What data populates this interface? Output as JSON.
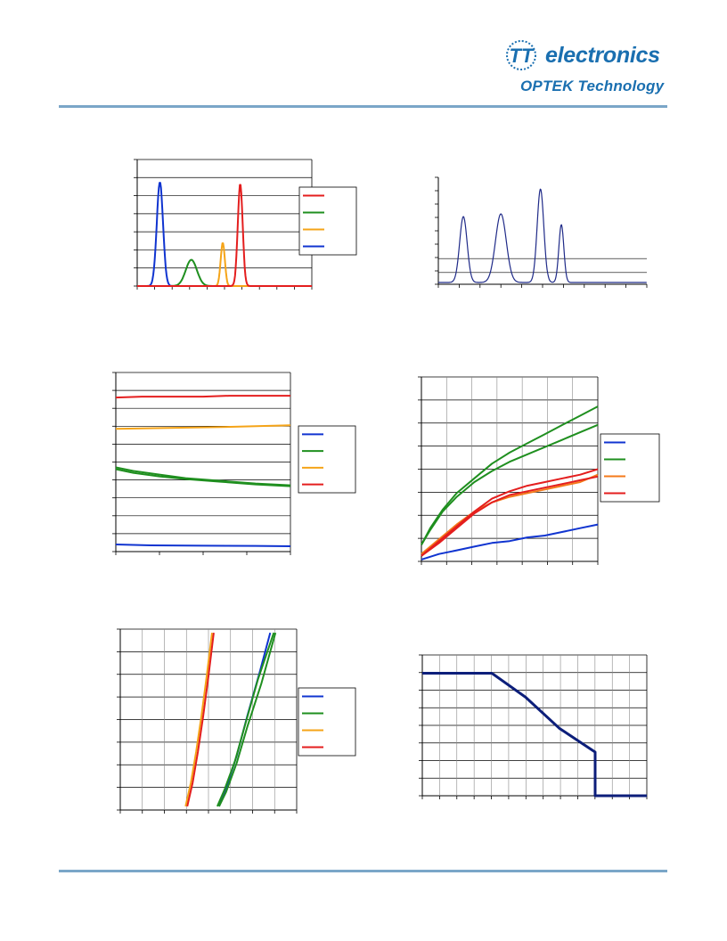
{
  "header": {
    "brand_text": "electronics",
    "sub_text": "OPTEK Technology",
    "logo_monogram": "TT",
    "brand_color": "#1a6fb0",
    "rule_color": "#7aa6c8"
  },
  "palette": {
    "red": "#e41e1e",
    "green": "#1f8f1f",
    "amber": "#f5a418",
    "blue": "#1034d0",
    "navy": "#1f2a88",
    "deep_navy": "#0c1e7a",
    "orange": "#f47a1a"
  },
  "chart_data": [
    {
      "type": "line",
      "grid": "horizontal",
      "legend_placement": "right",
      "legend_colors": [
        "red",
        "green",
        "amber",
        "blue"
      ],
      "ylim": [
        0,
        1.4
      ],
      "xlim": [
        0,
        1
      ],
      "series": [
        {
          "color": "blue",
          "peak_x": 0.13,
          "peak_y": 1.15,
          "width": 0.018
        },
        {
          "color": "green",
          "peak_x": 0.31,
          "peak_y": 0.29,
          "width": 0.032
        },
        {
          "color": "amber",
          "peak_x": 0.49,
          "peak_y": 0.48,
          "width": 0.012
        },
        {
          "color": "red",
          "peak_x": 0.59,
          "peak_y": 1.13,
          "width": 0.014
        }
      ]
    },
    {
      "type": "line",
      "grid": "horizontal",
      "ylim": [
        0,
        1.2
      ],
      "xlim": [
        0,
        1
      ],
      "series": [
        {
          "color": "navy",
          "peaks": [
            {
              "x": 0.12,
              "y": 0.74,
              "w": 0.018
            },
            {
              "x": 0.3,
              "y": 0.77,
              "w": 0.026
            },
            {
              "x": 0.49,
              "y": 1.05,
              "w": 0.016
            },
            {
              "x": 0.59,
              "y": 0.65,
              "w": 0.012
            }
          ]
        }
      ]
    },
    {
      "type": "line",
      "grid": "horizontal",
      "legend_placement": "right",
      "legend_colors": [
        "blue",
        "green",
        "amber",
        "red"
      ],
      "ylim": [
        0,
        1
      ],
      "xlim": [
        0,
        1
      ],
      "series": [
        {
          "color": "red",
          "x": [
            0,
            0.15,
            0.5,
            0.65,
            1
          ],
          "y": [
            0.86,
            0.865,
            0.865,
            0.87,
            0.87
          ]
        },
        {
          "color": "amber",
          "x": [
            0,
            0.3,
            0.6,
            1
          ],
          "y": [
            0.685,
            0.69,
            0.695,
            0.705
          ]
        },
        {
          "color": "green",
          "x": [
            0,
            0.1,
            0.25,
            0.4,
            0.6,
            0.8,
            1
          ],
          "y": [
            0.47,
            0.45,
            0.43,
            0.41,
            0.395,
            0.38,
            0.37
          ]
        },
        {
          "color": "green",
          "x": [
            0,
            0.1,
            0.25,
            0.4,
            0.6,
            0.8,
            1
          ],
          "y": [
            0.46,
            0.44,
            0.42,
            0.405,
            0.39,
            0.375,
            0.365
          ]
        },
        {
          "color": "blue",
          "x": [
            0,
            0.2,
            0.5,
            0.8,
            1
          ],
          "y": [
            0.04,
            0.035,
            0.033,
            0.032,
            0.03
          ]
        }
      ]
    },
    {
      "type": "line",
      "grid": "both",
      "legend_placement": "right",
      "legend_colors": [
        "blue",
        "green",
        "orange",
        "red"
      ],
      "ylim": [
        0,
        1
      ],
      "xlim": [
        0,
        1
      ],
      "series": [
        {
          "color": "green",
          "x": [
            0,
            0.05,
            0.12,
            0.2,
            0.3,
            0.4,
            0.5,
            0.6,
            0.7,
            0.8,
            0.9,
            1
          ],
          "y": [
            0.09,
            0.18,
            0.28,
            0.37,
            0.45,
            0.53,
            0.59,
            0.64,
            0.69,
            0.74,
            0.79,
            0.84
          ]
        },
        {
          "color": "green",
          "x": [
            0,
            0.05,
            0.12,
            0.2,
            0.3,
            0.4,
            0.5,
            0.6,
            0.7,
            0.8,
            0.9,
            1
          ],
          "y": [
            0.09,
            0.17,
            0.27,
            0.35,
            0.43,
            0.49,
            0.54,
            0.58,
            0.62,
            0.66,
            0.7,
            0.74
          ]
        },
        {
          "color": "orange",
          "x": [
            0,
            0.1,
            0.2,
            0.3,
            0.4,
            0.5,
            0.6,
            0.7,
            0.8,
            0.9,
            1
          ],
          "y": [
            0.04,
            0.12,
            0.2,
            0.27,
            0.32,
            0.35,
            0.37,
            0.39,
            0.41,
            0.43,
            0.47
          ]
        },
        {
          "color": "red",
          "x": [
            0,
            0.1,
            0.2,
            0.3,
            0.4,
            0.5,
            0.6,
            0.7,
            0.8,
            0.9,
            1
          ],
          "y": [
            0.03,
            0.11,
            0.19,
            0.27,
            0.34,
            0.38,
            0.41,
            0.43,
            0.45,
            0.47,
            0.5
          ]
        },
        {
          "color": "red",
          "x": [
            0,
            0.1,
            0.2,
            0.3,
            0.4,
            0.5,
            0.6,
            0.7,
            0.8,
            0.9,
            1
          ],
          "y": [
            0.03,
            0.1,
            0.18,
            0.26,
            0.32,
            0.36,
            0.38,
            0.4,
            0.42,
            0.44,
            0.46
          ]
        },
        {
          "color": "blue",
          "x": [
            0,
            0.1,
            0.2,
            0.3,
            0.4,
            0.5,
            0.6,
            0.7,
            0.8,
            0.9,
            1
          ],
          "y": [
            0.01,
            0.04,
            0.06,
            0.08,
            0.1,
            0.11,
            0.13,
            0.14,
            0.16,
            0.18,
            0.2
          ]
        }
      ]
    },
    {
      "type": "line",
      "grid": "both",
      "legend_placement": "right",
      "legend_colors": [
        "blue",
        "green",
        "amber",
        "red"
      ],
      "ylim": [
        0,
        1
      ],
      "xlim": [
        0,
        1
      ],
      "series": [
        {
          "color": "amber",
          "x": [
            0.37,
            0.4,
            0.43,
            0.46,
            0.49,
            0.52
          ],
          "y": [
            0.02,
            0.15,
            0.32,
            0.52,
            0.74,
            0.98
          ]
        },
        {
          "color": "red",
          "x": [
            0.38,
            0.41,
            0.44,
            0.47,
            0.5,
            0.53
          ],
          "y": [
            0.02,
            0.15,
            0.32,
            0.52,
            0.74,
            0.98
          ]
        },
        {
          "color": "blue",
          "x": [
            0.56,
            0.6,
            0.66,
            0.72,
            0.79,
            0.85
          ],
          "y": [
            0.02,
            0.12,
            0.3,
            0.52,
            0.76,
            0.98
          ]
        },
        {
          "color": "green",
          "x": [
            0.55,
            0.59,
            0.65,
            0.71,
            0.78,
            0.87
          ],
          "y": [
            0.02,
            0.11,
            0.27,
            0.48,
            0.72,
            0.98
          ]
        },
        {
          "color": "green",
          "x": [
            0.56,
            0.6,
            0.66,
            0.72,
            0.8,
            0.88
          ],
          "y": [
            0.02,
            0.1,
            0.26,
            0.46,
            0.7,
            0.98
          ]
        }
      ]
    },
    {
      "type": "line",
      "grid": "both",
      "ylim": [
        0,
        1
      ],
      "xlim": [
        0,
        1
      ],
      "series": [
        {
          "color": "deep_navy",
          "x": [
            0,
            0.31,
            0.46,
            0.61,
            0.77,
            0.77,
            1
          ],
          "y": [
            0.87,
            0.87,
            0.7,
            0.48,
            0.31,
            0,
            0
          ]
        }
      ]
    }
  ]
}
